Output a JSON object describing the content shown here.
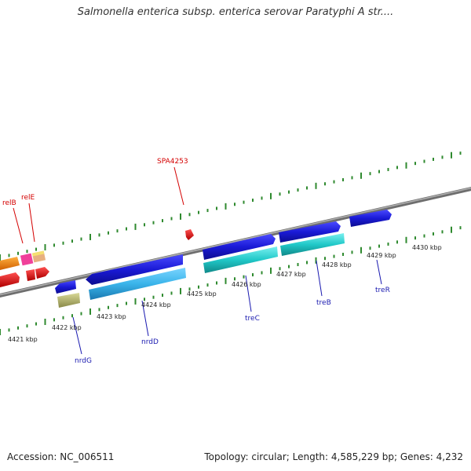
{
  "title": "Salmonella enterica subsp. enterica serovar Paratyphi A str....",
  "footer": {
    "accession": "Accession: NC_006511",
    "info": "Topology: circular; Length: 4,585,229 bp; Genes: 4,232"
  },
  "colors": {
    "backbone": "#8c8c8c",
    "tick": "#2f8a2f",
    "forward_gene": "#1a1ad6",
    "reverse_gene": "#20c8c8",
    "light_blue": "#3ab4ea",
    "olive": "#b8b870",
    "red": "#ee0000",
    "orange": "#ff8a00",
    "pink": "#f0409a",
    "tan": "#e8b080",
    "blue_label": "#1a1ab0",
    "red_label": "#d40000"
  },
  "kbp_labels": [
    "4421 kbp",
    "4422 kbp",
    "4423 kbp",
    "4424 kbp",
    "4425 kbp",
    "4426 kbp",
    "4427 kbp",
    "4428 kbp",
    "4429 kbp",
    "4430 kbp"
  ],
  "gene_labels": [
    {
      "text": "relB",
      "color": "red"
    },
    {
      "text": "relE",
      "color": "red"
    },
    {
      "text": "SPA4253",
      "color": "red"
    },
    {
      "text": "nrdG",
      "color": "blue"
    },
    {
      "text": "nrdD",
      "color": "blue"
    },
    {
      "text": "treC",
      "color": "blue"
    },
    {
      "text": "treB",
      "color": "blue"
    },
    {
      "text": "treR",
      "color": "blue"
    }
  ]
}
